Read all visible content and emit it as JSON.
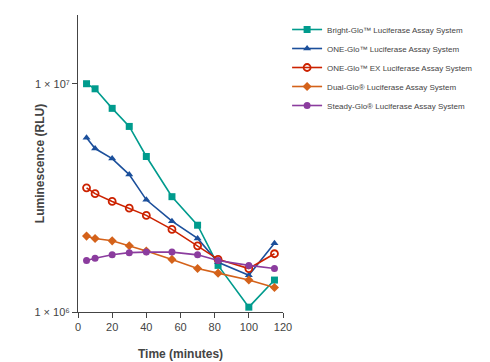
{
  "chart_data": {
    "type": "line",
    "xlabel": "Time (minutes)",
    "ylabel": "Luminescence (RLU)",
    "x": [
      5,
      10,
      20,
      30,
      40,
      55,
      70,
      82,
      100,
      115
    ],
    "series": [
      {
        "name": "Bright-Glo™ Luciferase Assay System",
        "color": "#009B8D",
        "marker": "square",
        "values": [
          10000000,
          9500000,
          7800000,
          6500000,
          4800000,
          3200000,
          2400000,
          1600000,
          1050000,
          1380000
        ]
      },
      {
        "name": "ONE-Glo™ Luciferase Assay System",
        "color": "#1B4F9B",
        "marker": "triangle-up",
        "values": [
          5800000,
          5200000,
          4700000,
          4000000,
          3100000,
          2500000,
          2100000,
          1650000,
          1450000,
          2000000
        ]
      },
      {
        "name": "ONE-Glo™ EX Luciferase Assay System",
        "color": "#CC2200",
        "marker": "circle-open",
        "values": [
          3500000,
          3300000,
          3050000,
          2850000,
          2650000,
          2300000,
          1950000,
          1700000,
          1550000,
          1800000
        ]
      },
      {
        "name": "Dual-Glo® Luciferase Assay System",
        "color": "#D4621A",
        "marker": "diamond",
        "values": [
          2150000,
          2100000,
          2050000,
          1950000,
          1850000,
          1700000,
          1550000,
          1480000,
          1380000,
          1280000
        ]
      },
      {
        "name": "Steady-Glo® Luciferase Assay System",
        "color": "#8B3C9E",
        "marker": "circle",
        "values": [
          1680000,
          1720000,
          1780000,
          1820000,
          1830000,
          1830000,
          1780000,
          1680000,
          1600000,
          1550000
        ]
      }
    ],
    "xlim": [
      0,
      120
    ],
    "xticks": [
      0,
      20,
      40,
      60,
      80,
      100,
      120
    ],
    "ylim": [
      1000000,
      20000000
    ],
    "yticks": [
      {
        "value": 1000000,
        "label": "1 × 10⁶"
      },
      {
        "value": 10000000,
        "label": "1 × 10⁷"
      }
    ],
    "log": "y",
    "grid": false,
    "legend": "right"
  }
}
